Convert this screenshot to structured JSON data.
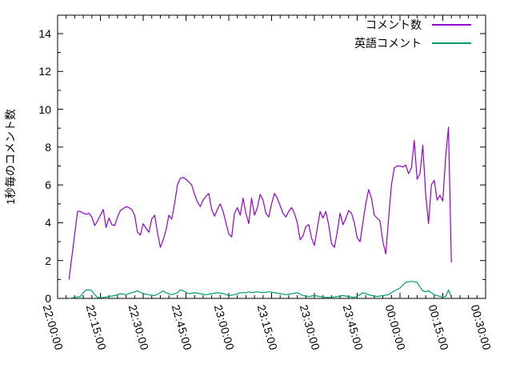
{
  "chart_data": {
    "type": "line",
    "title": "",
    "xlabel": "",
    "ylabel": "1秒毎のコメント数",
    "background_color": "#ffffff",
    "axis_color": "#000000",
    "grid": false,
    "legend_position": "top-right",
    "ylim": [
      0,
      15
    ],
    "yticks": [
      0,
      2,
      4,
      6,
      8,
      10,
      12,
      14
    ],
    "y_minor_interval": 1,
    "x_range_minutes": 150,
    "x_start_label": "22:00:00",
    "x_end_label": "00:30:00",
    "xticks": [
      "22:00:00",
      "22:15:00",
      "22:30:00",
      "22:45:00",
      "23:00:00",
      "23:15:00",
      "23:30:00",
      "23:45:00",
      "00:00:00",
      "00:15:00",
      "00:30:00"
    ],
    "x_tick_interval_min": 15,
    "x_minor_interval_min": 3,
    "series": [
      {
        "name": "コメント数",
        "color": "#9400d3",
        "points": [
          [
            "22:04",
            1.0
          ],
          [
            "22:05",
            2.2
          ],
          [
            "22:06",
            3.4
          ],
          [
            "22:07",
            4.6
          ],
          [
            "22:08",
            4.6
          ],
          [
            "22:09",
            4.5
          ],
          [
            "22:10",
            4.45
          ],
          [
            "22:11",
            4.5
          ],
          [
            "22:12",
            4.3
          ],
          [
            "22:13",
            3.85
          ],
          [
            "22:14",
            4.1
          ],
          [
            "22:15",
            4.4
          ],
          [
            "22:16",
            4.7
          ],
          [
            "22:17",
            3.75
          ],
          [
            "22:18",
            4.25
          ],
          [
            "22:19",
            3.9
          ],
          [
            "22:20",
            3.85
          ],
          [
            "22:21",
            4.3
          ],
          [
            "22:22",
            4.65
          ],
          [
            "22:23",
            4.75
          ],
          [
            "22:24",
            4.85
          ],
          [
            "22:25",
            4.8
          ],
          [
            "22:26",
            4.7
          ],
          [
            "22:27",
            4.4
          ],
          [
            "22:28",
            3.5
          ],
          [
            "22:29",
            3.35
          ],
          [
            "22:30",
            3.95
          ],
          [
            "22:31",
            3.7
          ],
          [
            "22:32",
            3.5
          ],
          [
            "22:33",
            4.2
          ],
          [
            "22:34",
            4.4
          ],
          [
            "22:35",
            3.5
          ],
          [
            "22:36",
            2.7
          ],
          [
            "22:37",
            3.1
          ],
          [
            "22:38",
            3.6
          ],
          [
            "22:39",
            4.4
          ],
          [
            "22:40",
            4.2
          ],
          [
            "22:41",
            5.0
          ],
          [
            "22:42",
            6.0
          ],
          [
            "22:43",
            6.35
          ],
          [
            "22:44",
            6.4
          ],
          [
            "22:45",
            6.3
          ],
          [
            "22:46",
            6.15
          ],
          [
            "22:47",
            6.0
          ],
          [
            "22:48",
            5.5
          ],
          [
            "22:49",
            5.1
          ],
          [
            "22:50",
            4.85
          ],
          [
            "22:51",
            5.2
          ],
          [
            "22:52",
            5.4
          ],
          [
            "22:53",
            5.55
          ],
          [
            "22:54",
            4.7
          ],
          [
            "22:55",
            4.35
          ],
          [
            "22:56",
            4.7
          ],
          [
            "22:57",
            5.0
          ],
          [
            "22:58",
            4.6
          ],
          [
            "22:59",
            4.0
          ],
          [
            "23:00",
            3.4
          ],
          [
            "23:01",
            3.25
          ],
          [
            "23:02",
            4.5
          ],
          [
            "23:03",
            4.8
          ],
          [
            "23:04",
            4.4
          ],
          [
            "23:05",
            5.3
          ],
          [
            "23:06",
            4.5
          ],
          [
            "23:07",
            3.95
          ],
          [
            "23:08",
            5.3
          ],
          [
            "23:09",
            4.4
          ],
          [
            "23:10",
            4.8
          ],
          [
            "23:11",
            5.5
          ],
          [
            "23:12",
            5.2
          ],
          [
            "23:13",
            4.5
          ],
          [
            "23:14",
            4.3
          ],
          [
            "23:15",
            5.0
          ],
          [
            "23:16",
            5.55
          ],
          [
            "23:17",
            5.3
          ],
          [
            "23:18",
            4.9
          ],
          [
            "23:19",
            4.5
          ],
          [
            "23:20",
            4.3
          ],
          [
            "23:21",
            4.6
          ],
          [
            "23:22",
            4.8
          ],
          [
            "23:23",
            4.5
          ],
          [
            "23:24",
            4.0
          ],
          [
            "23:25",
            3.1
          ],
          [
            "23:26",
            3.3
          ],
          [
            "23:27",
            3.8
          ],
          [
            "23:28",
            3.9
          ],
          [
            "23:29",
            3.2
          ],
          [
            "23:30",
            2.8
          ],
          [
            "23:31",
            3.7
          ],
          [
            "23:32",
            4.6
          ],
          [
            "23:33",
            4.25
          ],
          [
            "23:34",
            4.6
          ],
          [
            "23:35",
            3.9
          ],
          [
            "23:36",
            2.9
          ],
          [
            "23:37",
            2.7
          ],
          [
            "23:38",
            3.5
          ],
          [
            "23:39",
            4.5
          ],
          [
            "23:40",
            3.9
          ],
          [
            "23:41",
            4.2
          ],
          [
            "23:42",
            4.65
          ],
          [
            "23:43",
            4.5
          ],
          [
            "23:44",
            4.0
          ],
          [
            "23:45",
            3.2
          ],
          [
            "23:46",
            3.0
          ],
          [
            "23:47",
            4.0
          ],
          [
            "23:48",
            5.0
          ],
          [
            "23:49",
            5.75
          ],
          [
            "23:50",
            5.3
          ],
          [
            "23:51",
            4.4
          ],
          [
            "23:52",
            4.25
          ],
          [
            "23:53",
            4.1
          ],
          [
            "23:54",
            3.0
          ],
          [
            "23:55",
            2.35
          ],
          [
            "23:56",
            4.2
          ],
          [
            "23:57",
            6.0
          ],
          [
            "23:58",
            6.9
          ],
          [
            "23:59",
            7.0
          ],
          [
            "00:00",
            7.0
          ],
          [
            "00:01",
            6.95
          ],
          [
            "00:02",
            7.05
          ],
          [
            "00:03",
            6.6
          ],
          [
            "00:04",
            6.9
          ],
          [
            "00:05",
            8.35
          ],
          [
            "00:06",
            6.3
          ],
          [
            "00:07",
            6.6
          ],
          [
            "00:08",
            8.1
          ],
          [
            "00:09",
            5.5
          ],
          [
            "00:10",
            3.95
          ],
          [
            "00:11",
            6.0
          ],
          [
            "00:12",
            6.25
          ],
          [
            "00:13",
            5.2
          ],
          [
            "00:14",
            5.45
          ],
          [
            "00:15",
            5.15
          ],
          [
            "00:16",
            7.5
          ],
          [
            "00:17",
            9.05
          ],
          [
            "00:18",
            1.9
          ]
        ]
      },
      {
        "name": "英語コメント",
        "color": "#009e73",
        "points": [
          [
            "22:04",
            0.0
          ],
          [
            "22:06",
            0.05
          ],
          [
            "22:08",
            0.1
          ],
          [
            "22:09",
            0.3
          ],
          [
            "22:10",
            0.45
          ],
          [
            "22:11",
            0.45
          ],
          [
            "22:12",
            0.4
          ],
          [
            "22:13",
            0.2
          ],
          [
            "22:14",
            0.05
          ],
          [
            "22:16",
            0.05
          ],
          [
            "22:18",
            0.1
          ],
          [
            "22:20",
            0.15
          ],
          [
            "22:22",
            0.25
          ],
          [
            "22:24",
            0.2
          ],
          [
            "22:26",
            0.3
          ],
          [
            "22:28",
            0.4
          ],
          [
            "22:30",
            0.25
          ],
          [
            "22:32",
            0.2
          ],
          [
            "22:34",
            0.15
          ],
          [
            "22:36",
            0.3
          ],
          [
            "22:37",
            0.4
          ],
          [
            "22:38",
            0.3
          ],
          [
            "22:40",
            0.2
          ],
          [
            "22:42",
            0.3
          ],
          [
            "22:43",
            0.45
          ],
          [
            "22:44",
            0.4
          ],
          [
            "22:46",
            0.25
          ],
          [
            "22:48",
            0.3
          ],
          [
            "22:50",
            0.25
          ],
          [
            "22:52",
            0.2
          ],
          [
            "22:54",
            0.25
          ],
          [
            "22:56",
            0.3
          ],
          [
            "22:58",
            0.25
          ],
          [
            "23:00",
            0.15
          ],
          [
            "23:02",
            0.2
          ],
          [
            "23:04",
            0.3
          ],
          [
            "23:06",
            0.3
          ],
          [
            "23:07",
            0.35
          ],
          [
            "23:08",
            0.3
          ],
          [
            "23:10",
            0.35
          ],
          [
            "23:12",
            0.3
          ],
          [
            "23:14",
            0.35
          ],
          [
            "23:16",
            0.3
          ],
          [
            "23:18",
            0.25
          ],
          [
            "23:20",
            0.2
          ],
          [
            "23:22",
            0.25
          ],
          [
            "23:24",
            0.3
          ],
          [
            "23:26",
            0.15
          ],
          [
            "23:28",
            0.1
          ],
          [
            "23:30",
            0.15
          ],
          [
            "23:32",
            0.1
          ],
          [
            "23:34",
            0.05
          ],
          [
            "23:36",
            0.05
          ],
          [
            "23:38",
            0.1
          ],
          [
            "23:40",
            0.15
          ],
          [
            "23:42",
            0.1
          ],
          [
            "23:44",
            0.05
          ],
          [
            "23:46",
            0.2
          ],
          [
            "23:47",
            0.3
          ],
          [
            "23:48",
            0.25
          ],
          [
            "23:50",
            0.15
          ],
          [
            "23:52",
            0.1
          ],
          [
            "23:54",
            0.15
          ],
          [
            "23:56",
            0.2
          ],
          [
            "23:58",
            0.4
          ],
          [
            "00:00",
            0.55
          ],
          [
            "00:01",
            0.7
          ],
          [
            "00:02",
            0.85
          ],
          [
            "00:04",
            0.9
          ],
          [
            "00:06",
            0.85
          ],
          [
            "00:07",
            0.6
          ],
          [
            "00:08",
            0.4
          ],
          [
            "00:09",
            0.35
          ],
          [
            "00:10",
            0.4
          ],
          [
            "00:11",
            0.3
          ],
          [
            "00:12",
            0.2
          ],
          [
            "00:14",
            0.1
          ],
          [
            "00:15",
            0.05
          ],
          [
            "00:16",
            0.1
          ],
          [
            "00:17",
            0.45
          ],
          [
            "00:18",
            0.05
          ]
        ]
      }
    ]
  }
}
